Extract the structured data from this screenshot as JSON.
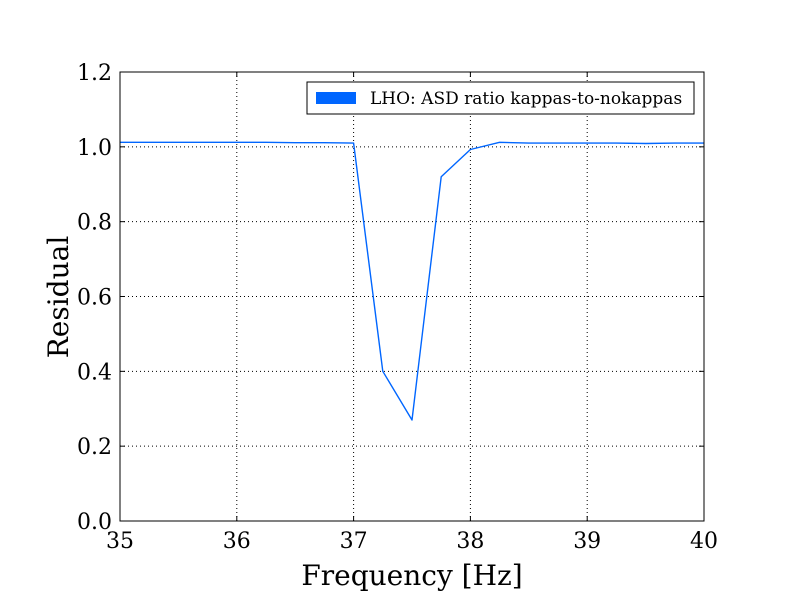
{
  "chart_data": {
    "type": "line",
    "title": "",
    "xlabel": "Frequency [Hz]",
    "ylabel": "Residual",
    "xlim": [
      35,
      40
    ],
    "ylim": [
      0.0,
      1.2
    ],
    "xticks": [
      35,
      36,
      37,
      38,
      39,
      40
    ],
    "xtick_labels": [
      "35",
      "36",
      "37",
      "38",
      "39",
      "40"
    ],
    "yticks": [
      0.0,
      0.2,
      0.4,
      0.6,
      0.8,
      1.0,
      1.2
    ],
    "ytick_labels": [
      "0.0",
      "0.2",
      "0.4",
      "0.6",
      "0.8",
      "1.0",
      "1.2"
    ],
    "grid": true,
    "legend_position": "top-right",
    "series": [
      {
        "name": "LHO: ASD ratio kappas-to-nokappas",
        "color": "#0066ff",
        "x": [
          35.0,
          35.25,
          35.5,
          35.75,
          36.0,
          36.25,
          36.5,
          36.75,
          37.0,
          37.25,
          37.5,
          37.75,
          38.0,
          38.25,
          38.5,
          38.75,
          39.0,
          39.25,
          39.5,
          39.75,
          40.0
        ],
        "y": [
          1.012,
          1.012,
          1.012,
          1.012,
          1.012,
          1.012,
          1.011,
          1.011,
          1.01,
          0.4,
          0.27,
          0.92,
          0.993,
          1.012,
          1.01,
          1.01,
          1.01,
          1.01,
          1.009,
          1.01,
          1.01
        ]
      }
    ]
  }
}
